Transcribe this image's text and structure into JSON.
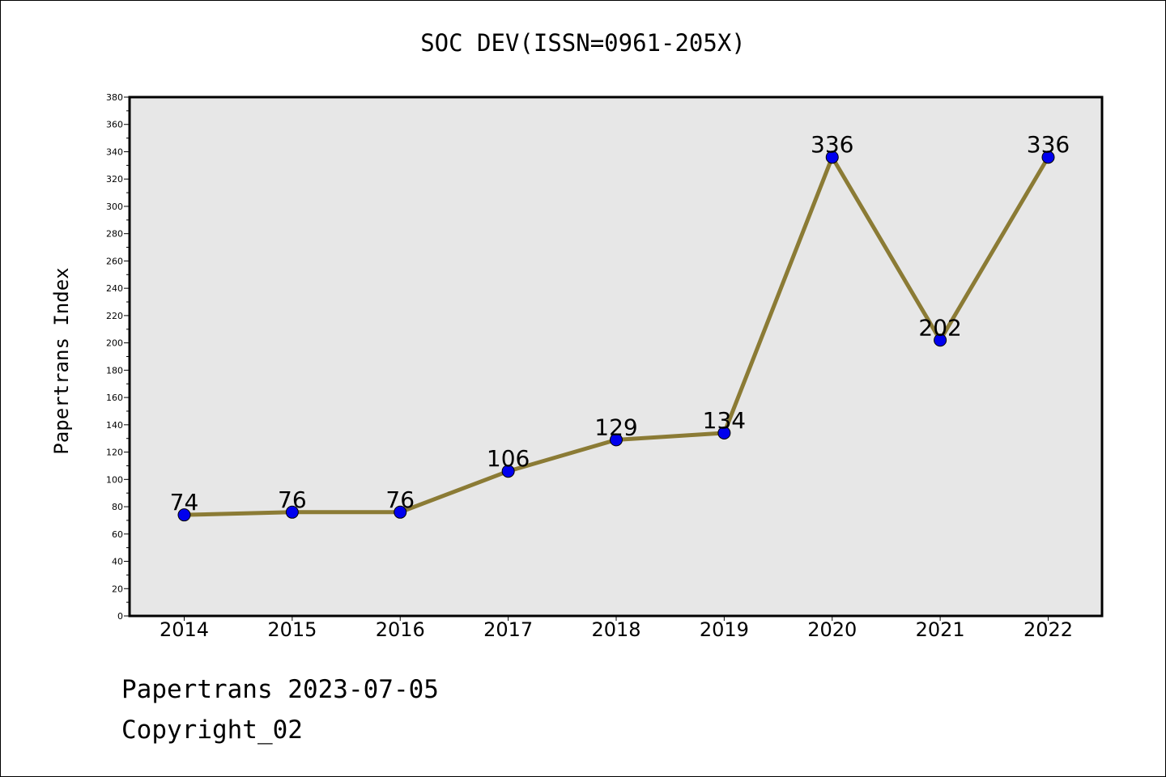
{
  "chart_data": {
    "type": "line",
    "title": "SOC DEV(ISSN=0961-205X)",
    "ylabel": "Papertrans Index",
    "xlabel": "",
    "categories": [
      "2014",
      "2015",
      "2016",
      "2017",
      "2018",
      "2019",
      "2020",
      "2021",
      "2022"
    ],
    "series": [
      {
        "values": [
          74,
          76,
          76,
          106,
          129,
          134,
          336,
          202,
          336
        ]
      }
    ],
    "data_labels": [
      "74",
      "76",
      "76",
      "106",
      "129",
      "134",
      "336",
      "202",
      "336"
    ],
    "yticks": [
      "0",
      "20",
      "40",
      "60",
      "80",
      "100",
      "120",
      "140",
      "160",
      "180",
      "200",
      "220",
      "240",
      "260",
      "280",
      "300",
      "320",
      "340",
      "360",
      "380"
    ],
    "ylim": [
      0,
      380
    ],
    "grid": false,
    "colors": {
      "line": "#8B7B35",
      "marker": "#0000EE",
      "plot_bg": "#E7E7E7"
    }
  },
  "footer": {
    "line1": "Papertrans 2023-07-05",
    "line2": "Copyright_02"
  }
}
